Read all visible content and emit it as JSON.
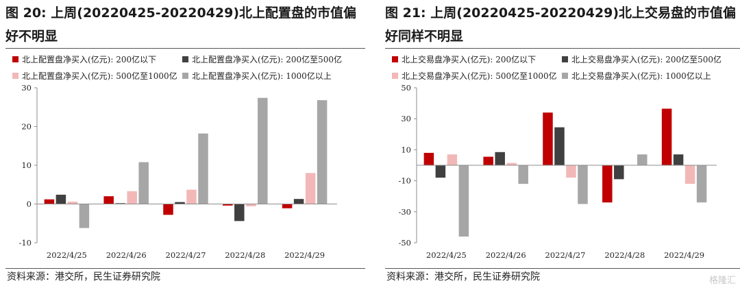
{
  "charts": [
    {
      "title": "图 20: 上周(20220425-20220429)北上配置盘的市值偏好不明显",
      "source": "资料来源：港交所，民生证券研究院"
    },
    {
      "title": "图 21: 上周(20220425-20220429)北上交易盘的市值偏好同样不明显",
      "source": "资料来源：港交所，民生证券研究院"
    }
  ],
  "watermark": "格隆汇",
  "chart_data": [
    {
      "type": "bar",
      "categories": [
        "2022/4/25",
        "2022/4/26",
        "2022/4/27",
        "2022/4/28",
        "2022/4/29"
      ],
      "series": [
        {
          "name": "北上配置盘净买入(亿元): 200亿以下",
          "color": "#c00000",
          "values": [
            1.2,
            2.0,
            -2.8,
            -0.4,
            -1.1
          ]
        },
        {
          "name": "北上配置盘净买入(亿元): 200亿至500亿",
          "color": "#404040",
          "values": [
            2.4,
            0.2,
            0.5,
            -4.4,
            1.3
          ]
        },
        {
          "name": "北上配置盘净买入(亿元): 500亿至1000亿",
          "color": "#f2b8b8",
          "values": [
            0.6,
            3.3,
            3.7,
            -0.6,
            8.0
          ]
        },
        {
          "name": "北上配置盘净买入(亿元): 1000亿以上",
          "color": "#a6a6a6",
          "values": [
            -6.2,
            10.8,
            18.2,
            27.4,
            26.8
          ]
        }
      ],
      "ylim": [
        -10,
        30
      ],
      "yticks": [
        -10,
        0,
        10,
        20,
        30
      ],
      "grid": false,
      "legend": "top"
    },
    {
      "type": "bar",
      "categories": [
        "2022/4/25",
        "2022/4/26",
        "2022/4/27",
        "2022/4/28",
        "2022/4/29"
      ],
      "series": [
        {
          "name": "北上交易盘净买入(亿元): 200亿以下",
          "color": "#c00000",
          "values": [
            8.0,
            5.5,
            34.0,
            -24.0,
            36.5
          ]
        },
        {
          "name": "北上交易盘净买入(亿元): 200亿至500亿",
          "color": "#404040",
          "values": [
            -8.0,
            8.5,
            24.5,
            -9.0,
            7.0
          ]
        },
        {
          "name": "北上交易盘净买入(亿元): 500亿至1000亿",
          "color": "#f2b8b8",
          "values": [
            7.0,
            1.5,
            -8.0,
            0.2,
            -12.0
          ]
        },
        {
          "name": "北上交易盘净买入(亿元): 1000亿以上",
          "color": "#a6a6a6",
          "values": [
            -46.0,
            -12.0,
            -25.0,
            7.0,
            -24.0
          ]
        }
      ],
      "ylim": [
        -50,
        50
      ],
      "yticks": [
        -50,
        -30,
        -10,
        10,
        30,
        50
      ],
      "grid": false,
      "legend": "top"
    }
  ]
}
